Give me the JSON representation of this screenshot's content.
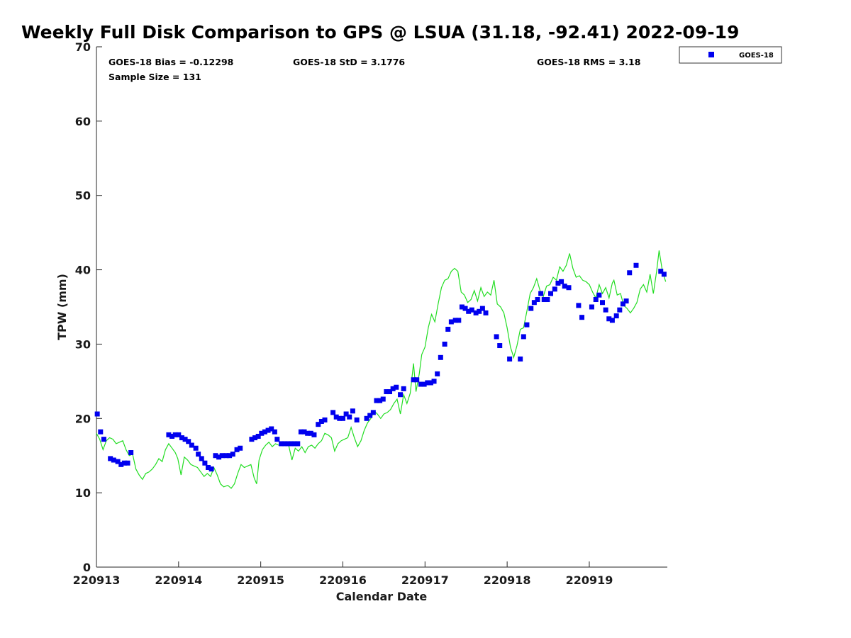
{
  "chart_data": {
    "type": "scatter",
    "title": "Weekly Full Disk Comparison to GPS @ LSUA (31.18, -92.41) 2022-09-19",
    "xlabel": "Calendar Date",
    "ylabel": "TPW (mm)",
    "ylim": [
      0,
      70
    ],
    "xlim": [
      0,
      6.95
    ],
    "y_ticks": [
      "0",
      "10",
      "20",
      "30",
      "40",
      "50",
      "60",
      "70"
    ],
    "x_ticks": [
      {
        "x": 0,
        "label": "220913"
      },
      {
        "x": 1,
        "label": "220914"
      },
      {
        "x": 2,
        "label": "220915"
      },
      {
        "x": 3,
        "label": "220916"
      },
      {
        "x": 4,
        "label": "220917"
      },
      {
        "x": 5,
        "label": "220918"
      },
      {
        "x": 6,
        "label": "220919"
      }
    ],
    "grid": false,
    "legend_position": "top-right, outside plot",
    "stats": {
      "bias": "GOES-18 Bias = -0.12298",
      "std": "GOES-18 StD = 3.1776",
      "rms": "GOES-18 RMS = 3.18",
      "sample": "Sample Size = 131"
    },
    "series": [
      {
        "name": "GOES-18",
        "kind": "markers",
        "color": "#0000ee",
        "points": [
          [
            0.01,
            20.6
          ],
          [
            0.05,
            18.2
          ],
          [
            0.09,
            17.2
          ],
          [
            0.17,
            14.6
          ],
          [
            0.21,
            14.4
          ],
          [
            0.26,
            14.2
          ],
          [
            0.3,
            13.8
          ],
          [
            0.34,
            14.0
          ],
          [
            0.38,
            14.0
          ],
          [
            0.42,
            15.4
          ],
          [
            0.88,
            17.8
          ],
          [
            0.92,
            17.6
          ],
          [
            0.96,
            17.8
          ],
          [
            1.0,
            17.8
          ],
          [
            1.04,
            17.4
          ],
          [
            1.08,
            17.2
          ],
          [
            1.12,
            16.9
          ],
          [
            1.16,
            16.4
          ],
          [
            1.21,
            16.0
          ],
          [
            1.24,
            15.2
          ],
          [
            1.28,
            14.6
          ],
          [
            1.32,
            14.0
          ],
          [
            1.36,
            13.4
          ],
          [
            1.4,
            13.2
          ],
          [
            1.45,
            15.0
          ],
          [
            1.49,
            14.8
          ],
          [
            1.53,
            15.0
          ],
          [
            1.58,
            15.0
          ],
          [
            1.62,
            15.0
          ],
          [
            1.66,
            15.2
          ],
          [
            1.71,
            15.8
          ],
          [
            1.75,
            16.0
          ],
          [
            1.89,
            17.2
          ],
          [
            1.93,
            17.4
          ],
          [
            1.97,
            17.6
          ],
          [
            2.01,
            18.0
          ],
          [
            2.05,
            18.2
          ],
          [
            2.09,
            18.4
          ],
          [
            2.13,
            18.6
          ],
          [
            2.17,
            18.2
          ],
          [
            2.2,
            17.2
          ],
          [
            2.25,
            16.6
          ],
          [
            2.29,
            16.6
          ],
          [
            2.33,
            16.6
          ],
          [
            2.37,
            16.6
          ],
          [
            2.41,
            16.6
          ],
          [
            2.45,
            16.6
          ],
          [
            2.49,
            18.2
          ],
          [
            2.53,
            18.2
          ],
          [
            2.57,
            18.0
          ],
          [
            2.61,
            18.0
          ],
          [
            2.65,
            17.8
          ],
          [
            2.7,
            19.2
          ],
          [
            2.74,
            19.6
          ],
          [
            2.78,
            19.8
          ],
          [
            2.88,
            20.8
          ],
          [
            2.92,
            20.2
          ],
          [
            2.96,
            20.0
          ],
          [
            3.0,
            20.0
          ],
          [
            3.04,
            20.6
          ],
          [
            3.08,
            20.2
          ],
          [
            3.12,
            21.0
          ],
          [
            3.17,
            19.8
          ],
          [
            3.29,
            20.0
          ],
          [
            3.33,
            20.4
          ],
          [
            3.37,
            20.8
          ],
          [
            3.41,
            22.4
          ],
          [
            3.45,
            22.4
          ],
          [
            3.49,
            22.6
          ],
          [
            3.53,
            23.6
          ],
          [
            3.57,
            23.6
          ],
          [
            3.61,
            24.0
          ],
          [
            3.65,
            24.2
          ],
          [
            3.7,
            23.2
          ],
          [
            3.74,
            24.0
          ],
          [
            3.86,
            25.2
          ],
          [
            3.9,
            25.2
          ],
          [
            3.95,
            24.6
          ],
          [
            3.99,
            24.6
          ],
          [
            4.03,
            24.8
          ],
          [
            4.07,
            24.8
          ],
          [
            4.11,
            25.0
          ],
          [
            4.15,
            26.0
          ],
          [
            4.19,
            28.2
          ],
          [
            4.24,
            30.0
          ],
          [
            4.28,
            32.0
          ],
          [
            4.32,
            33.0
          ],
          [
            4.37,
            33.2
          ],
          [
            4.41,
            33.2
          ],
          [
            4.45,
            35.0
          ],
          [
            4.49,
            34.8
          ],
          [
            4.53,
            34.4
          ],
          [
            4.57,
            34.6
          ],
          [
            4.62,
            34.2
          ],
          [
            4.66,
            34.4
          ],
          [
            4.7,
            34.8
          ],
          [
            4.74,
            34.2
          ],
          [
            4.87,
            31.0
          ],
          [
            4.91,
            29.8
          ],
          [
            5.03,
            28.0
          ],
          [
            5.16,
            28.0
          ],
          [
            5.2,
            31.0
          ],
          [
            5.24,
            32.6
          ],
          [
            5.29,
            34.8
          ],
          [
            5.33,
            35.6
          ],
          [
            5.37,
            36.0
          ],
          [
            5.41,
            36.8
          ],
          [
            5.45,
            36.0
          ],
          [
            5.49,
            36.0
          ],
          [
            5.53,
            36.8
          ],
          [
            5.58,
            37.4
          ],
          [
            5.62,
            38.2
          ],
          [
            5.66,
            38.4
          ],
          [
            5.7,
            37.8
          ],
          [
            5.75,
            37.6
          ],
          [
            5.87,
            35.2
          ],
          [
            5.91,
            33.6
          ],
          [
            6.03,
            35.0
          ],
          [
            6.08,
            36.0
          ],
          [
            6.12,
            36.6
          ],
          [
            6.16,
            35.6
          ],
          [
            6.2,
            34.6
          ],
          [
            6.24,
            33.4
          ],
          [
            6.28,
            33.2
          ],
          [
            6.33,
            33.8
          ],
          [
            6.37,
            34.6
          ],
          [
            6.41,
            35.4
          ],
          [
            6.45,
            35.8
          ],
          [
            6.49,
            39.6
          ],
          [
            6.57,
            40.6
          ],
          [
            6.87,
            39.8
          ],
          [
            6.91,
            39.4
          ]
        ]
      },
      {
        "name": "",
        "kind": "line",
        "color": "#22dd22",
        "points": [
          [
            0.0,
            18.0
          ],
          [
            0.04,
            17.2
          ],
          [
            0.08,
            15.8
          ],
          [
            0.12,
            17.0
          ],
          [
            0.16,
            17.4
          ],
          [
            0.2,
            17.2
          ],
          [
            0.24,
            16.6
          ],
          [
            0.28,
            16.8
          ],
          [
            0.32,
            17.0
          ],
          [
            0.36,
            15.8
          ],
          [
            0.4,
            15.0
          ],
          [
            0.44,
            15.2
          ],
          [
            0.48,
            13.2
          ],
          [
            0.52,
            12.4
          ],
          [
            0.56,
            11.8
          ],
          [
            0.6,
            12.6
          ],
          [
            0.64,
            12.8
          ],
          [
            0.68,
            13.2
          ],
          [
            0.72,
            13.8
          ],
          [
            0.76,
            14.6
          ],
          [
            0.8,
            14.2
          ],
          [
            0.84,
            15.8
          ],
          [
            0.88,
            16.6
          ],
          [
            0.92,
            16.0
          ],
          [
            0.96,
            15.4
          ],
          [
            0.99,
            14.6
          ],
          [
            1.03,
            12.4
          ],
          [
            1.07,
            14.8
          ],
          [
            1.11,
            14.4
          ],
          [
            1.15,
            13.8
          ],
          [
            1.19,
            13.6
          ],
          [
            1.23,
            13.4
          ],
          [
            1.27,
            12.8
          ],
          [
            1.31,
            12.2
          ],
          [
            1.35,
            12.6
          ],
          [
            1.39,
            12.2
          ],
          [
            1.43,
            13.4
          ],
          [
            1.47,
            12.4
          ],
          [
            1.51,
            11.2
          ],
          [
            1.55,
            10.8
          ],
          [
            1.6,
            11.0
          ],
          [
            1.64,
            10.6
          ],
          [
            1.68,
            11.2
          ],
          [
            1.72,
            12.6
          ],
          [
            1.76,
            13.8
          ],
          [
            1.8,
            13.4
          ],
          [
            1.84,
            13.6
          ],
          [
            1.88,
            13.8
          ],
          [
            1.92,
            12.0
          ],
          [
            1.95,
            11.2
          ],
          [
            1.98,
            14.4
          ],
          [
            2.02,
            15.8
          ],
          [
            2.06,
            16.4
          ],
          [
            2.1,
            16.8
          ],
          [
            2.14,
            16.2
          ],
          [
            2.18,
            16.6
          ],
          [
            2.22,
            16.4
          ],
          [
            2.26,
            16.6
          ],
          [
            2.3,
            16.8
          ],
          [
            2.34,
            16.4
          ],
          [
            2.38,
            14.4
          ],
          [
            2.42,
            16.0
          ],
          [
            2.46,
            15.6
          ],
          [
            2.5,
            16.2
          ],
          [
            2.54,
            15.4
          ],
          [
            2.58,
            16.2
          ],
          [
            2.62,
            16.4
          ],
          [
            2.66,
            16.0
          ],
          [
            2.7,
            16.6
          ],
          [
            2.74,
            17.0
          ],
          [
            2.78,
            18.0
          ],
          [
            2.82,
            17.8
          ],
          [
            2.86,
            17.4
          ],
          [
            2.9,
            15.6
          ],
          [
            2.94,
            16.6
          ],
          [
            2.98,
            17.0
          ],
          [
            3.02,
            17.2
          ],
          [
            3.06,
            17.4
          ],
          [
            3.1,
            18.8
          ],
          [
            3.14,
            17.4
          ],
          [
            3.18,
            16.2
          ],
          [
            3.22,
            17.0
          ],
          [
            3.26,
            18.4
          ],
          [
            3.3,
            19.4
          ],
          [
            3.34,
            20.0
          ],
          [
            3.38,
            21.0
          ],
          [
            3.42,
            20.6
          ],
          [
            3.46,
            20.0
          ],
          [
            3.5,
            20.6
          ],
          [
            3.54,
            20.8
          ],
          [
            3.58,
            21.2
          ],
          [
            3.62,
            22.0
          ],
          [
            3.66,
            22.6
          ],
          [
            3.7,
            20.6
          ],
          [
            3.74,
            23.2
          ],
          [
            3.78,
            22.0
          ],
          [
            3.82,
            23.4
          ],
          [
            3.86,
            27.4
          ],
          [
            3.89,
            23.6
          ],
          [
            3.93,
            26.0
          ],
          [
            3.96,
            28.6
          ],
          [
            4.0,
            29.6
          ],
          [
            4.04,
            32.2
          ],
          [
            4.08,
            34.0
          ],
          [
            4.12,
            33.0
          ],
          [
            4.16,
            35.4
          ],
          [
            4.2,
            37.6
          ],
          [
            4.24,
            38.6
          ],
          [
            4.28,
            38.8
          ],
          [
            4.32,
            39.8
          ],
          [
            4.36,
            40.2
          ],
          [
            4.4,
            39.8
          ],
          [
            4.44,
            37.0
          ],
          [
            4.48,
            36.6
          ],
          [
            4.52,
            35.6
          ],
          [
            4.56,
            36.0
          ],
          [
            4.6,
            37.2
          ],
          [
            4.64,
            35.8
          ],
          [
            4.68,
            37.6
          ],
          [
            4.72,
            36.4
          ],
          [
            4.76,
            37.0
          ],
          [
            4.8,
            36.6
          ],
          [
            4.84,
            38.6
          ],
          [
            4.88,
            35.4
          ],
          [
            4.92,
            35.0
          ],
          [
            4.96,
            34.2
          ],
          [
            5.0,
            32.2
          ],
          [
            5.04,
            29.6
          ],
          [
            5.08,
            28.2
          ],
          [
            5.12,
            29.8
          ],
          [
            5.16,
            32.0
          ],
          [
            5.2,
            32.2
          ],
          [
            5.24,
            34.4
          ],
          [
            5.28,
            36.8
          ],
          [
            5.32,
            37.6
          ],
          [
            5.36,
            38.8
          ],
          [
            5.4,
            37.2
          ],
          [
            5.44,
            36.4
          ],
          [
            5.48,
            37.8
          ],
          [
            5.52,
            38.0
          ],
          [
            5.56,
            39.0
          ],
          [
            5.6,
            38.6
          ],
          [
            5.64,
            40.4
          ],
          [
            5.68,
            39.8
          ],
          [
            5.72,
            40.6
          ],
          [
            5.76,
            42.2
          ],
          [
            5.8,
            40.2
          ],
          [
            5.84,
            39.0
          ],
          [
            5.88,
            39.2
          ],
          [
            5.92,
            38.6
          ],
          [
            5.96,
            38.4
          ],
          [
            6.0,
            38.0
          ],
          [
            6.04,
            37.0
          ],
          [
            6.08,
            36.2
          ],
          [
            6.12,
            38.0
          ],
          [
            6.16,
            36.8
          ],
          [
            6.2,
            37.6
          ],
          [
            6.24,
            36.2
          ],
          [
            6.28,
            38.2
          ],
          [
            6.3,
            38.6
          ],
          [
            6.34,
            36.6
          ],
          [
            6.38,
            36.8
          ],
          [
            6.42,
            35.2
          ],
          [
            6.46,
            34.8
          ],
          [
            6.5,
            34.2
          ],
          [
            6.54,
            34.8
          ],
          [
            6.58,
            35.6
          ],
          [
            6.62,
            37.4
          ],
          [
            6.66,
            38.0
          ],
          [
            6.7,
            37.0
          ],
          [
            6.74,
            39.4
          ],
          [
            6.78,
            36.8
          ],
          [
            6.82,
            39.8
          ],
          [
            6.85,
            42.6
          ],
          [
            6.89,
            39.8
          ],
          [
            6.93,
            38.4
          ]
        ]
      }
    ]
  }
}
